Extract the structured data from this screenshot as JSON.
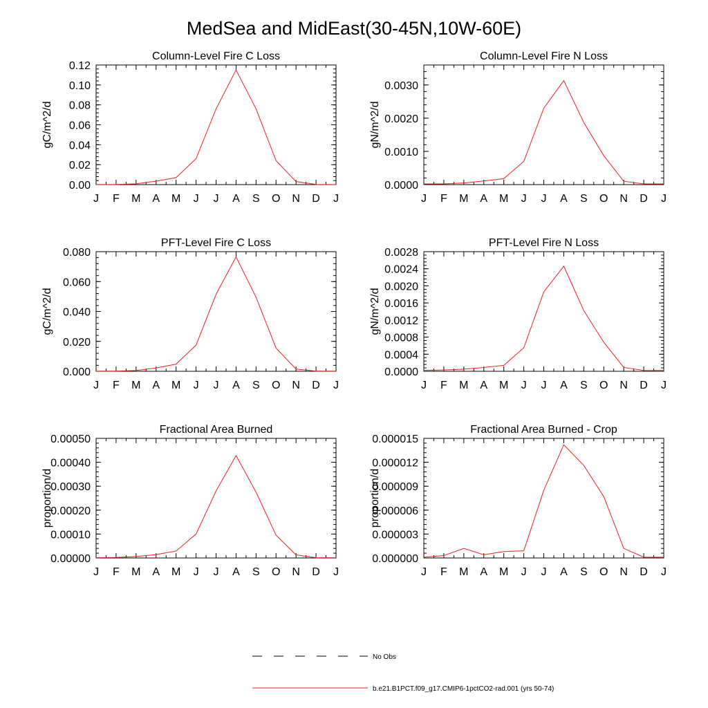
{
  "title": "MedSea and MidEast(30-45N,10W-60E)",
  "colors": {
    "model": "#e8201a",
    "obs": "#000000",
    "axis": "#000000"
  },
  "month_labels": [
    "J",
    "F",
    "M",
    "A",
    "M",
    "J",
    "J",
    "A",
    "S",
    "O",
    "N",
    "D",
    "J"
  ],
  "legend": {
    "obs_label": "No Obs",
    "model_label": "b.e21.B1PCT.f09_g17.CMIP6-1pctCO2-rad.001 (yrs 50-74)"
  },
  "chart_data": [
    {
      "type": "line",
      "title": "Column-Level Fire C Loss",
      "ylabel": "gC/m^2/d",
      "ylim": [
        0,
        0.12
      ],
      "yticks": [
        0,
        0.02,
        0.04,
        0.06,
        0.08,
        0.1,
        0.12
      ],
      "ytick_labels": [
        "0.00",
        "0.02",
        "0.04",
        "0.06",
        "0.08",
        "0.10",
        "0.12"
      ],
      "series": [
        {
          "values": [
            0.0001,
            0.0002,
            0.0008,
            0.0035,
            0.007,
            0.026,
            0.076,
            0.115,
            0.076,
            0.024,
            0.003,
            0.0002,
            0.0001
          ]
        }
      ]
    },
    {
      "type": "line",
      "title": "Column-Level Fire N Loss",
      "ylabel": "gN/m^2/d",
      "ylim": [
        0,
        0.0036
      ],
      "yticks": [
        0,
        0.001,
        0.002,
        0.003
      ],
      "ytick_labels": [
        "0.0000",
        "0.0010",
        "0.0020",
        "0.0030"
      ],
      "series": [
        {
          "values": [
            2e-05,
            2e-05,
            5e-05,
            0.00011,
            0.00018,
            0.0007,
            0.0023,
            0.00313,
            0.00187,
            0.00087,
            0.0001,
            2e-05,
            2e-05
          ]
        }
      ]
    },
    {
      "type": "line",
      "title": "PFT-Level Fire C Loss",
      "ylabel": "gC/m^2/d",
      "ylim": [
        0,
        0.08
      ],
      "yticks": [
        0,
        0.02,
        0.04,
        0.06,
        0.08
      ],
      "ytick_labels": [
        "0.000",
        "0.020",
        "0.040",
        "0.060",
        "0.080"
      ],
      "series": [
        {
          "values": [
            0.0001,
            0.0001,
            0.0005,
            0.0022,
            0.0048,
            0.0175,
            0.0515,
            0.0765,
            0.0495,
            0.0155,
            0.0015,
            0.0001,
            0.0001
          ]
        }
      ]
    },
    {
      "type": "line",
      "title": "PFT-Level Fire N Loss",
      "ylabel": "gN/m^2/d",
      "ylim": [
        0,
        0.0028
      ],
      "yticks": [
        0,
        0.0004,
        0.0008,
        0.0012,
        0.0016,
        0.002,
        0.0024,
        0.0028
      ],
      "ytick_labels": [
        "0.0000",
        "0.0004",
        "0.0008",
        "0.0012",
        "0.0016",
        "0.0020",
        "0.0024",
        "0.0028"
      ],
      "series": [
        {
          "values": [
            2e-05,
            3e-05,
            5e-05,
            9e-05,
            0.00014,
            0.00055,
            0.00186,
            0.00246,
            0.00142,
            0.00068,
            9e-05,
            2e-05,
            2e-05
          ]
        }
      ]
    },
    {
      "type": "line",
      "title": "Fractional Area Burned",
      "ylabel": "proportion/d",
      "ylim": [
        0,
        0.0005
      ],
      "yticks": [
        0,
        0.0001,
        0.0002,
        0.0003,
        0.0004,
        0.0005
      ],
      "ytick_labels": [
        "0.00000",
        "0.00010",
        "0.00020",
        "0.00030",
        "0.00040",
        "0.00050"
      ],
      "series": [
        {
          "values": [
            1e-06,
            2e-06,
            6e-06,
            1.4e-05,
            2.9e-05,
            0.0001,
            0.00028,
            0.000428,
            0.000275,
            9.5e-05,
            1.3e-05,
            1e-06,
            1e-06
          ]
        }
      ]
    },
    {
      "type": "line",
      "title": "Fractional Area Burned - Crop",
      "ylabel": "proportion/d",
      "ylim": [
        0,
        1.5e-05
      ],
      "yticks": [
        0,
        3e-06,
        6e-06,
        9e-06,
        1.2e-05,
        1.5e-05
      ],
      "ytick_labels": [
        "0.000000",
        "0.000003",
        "0.000006",
        "0.000009",
        "0.000012",
        "0.000015"
      ],
      "series": [
        {
          "values": [
            1e-07,
            3e-07,
            1.2e-06,
            4e-07,
            8e-07,
            9e-07,
            8.5e-06,
            1.42e-05,
            1.16e-05,
            7.7e-06,
            1.2e-06,
            1e-07,
            1e-07
          ]
        }
      ]
    }
  ]
}
